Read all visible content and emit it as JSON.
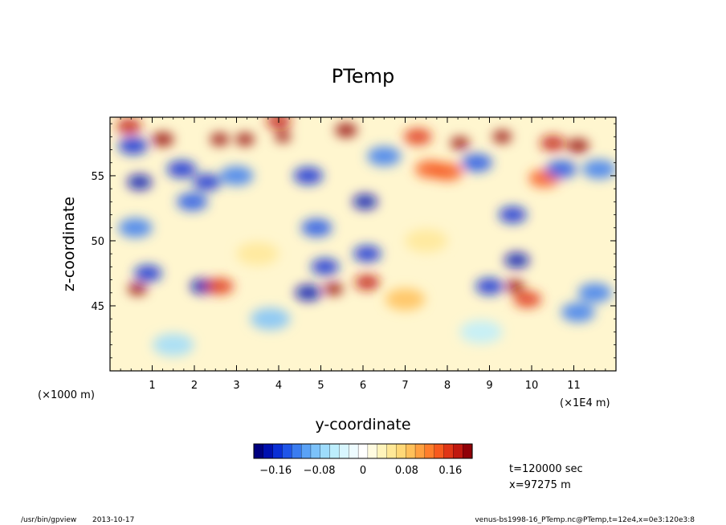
{
  "app": {
    "program": "/usr/bin/gpview",
    "date": "2013-10-17",
    "source": "venus-bs1998-16_PTemp.nc@PTemp,t=12e4,x=0e3:120e3:8"
  },
  "chart_data": {
    "type": "heatmap",
    "title": "PTemp",
    "xlabel": "y-coordinate",
    "ylabel": "z-coordinate",
    "x_unit_label": "(×1E4 m)",
    "y_unit_label": "(×1000 m)",
    "xlim": [
      0,
      12
    ],
    "ylim": [
      40,
      59.5
    ],
    "x_ticks": [
      "1",
      "2",
      "3",
      "4",
      "5",
      "6",
      "7",
      "8",
      "9",
      "10",
      "11"
    ],
    "y_ticks": [
      "45",
      "50",
      "55"
    ],
    "x_tick_values": [
      1,
      2,
      3,
      4,
      5,
      6,
      7,
      8,
      9,
      10,
      11
    ],
    "y_tick_values": [
      45,
      50,
      55
    ],
    "colorbar": {
      "range": [
        -0.2,
        0.2
      ],
      "tick_labels": [
        "−0.16",
        "−0.08",
        "0",
        "0.08",
        "0.16"
      ],
      "tick_values": [
        -0.16,
        -0.08,
        0,
        0.08,
        0.16
      ],
      "colors": [
        "#00007f",
        "#0010b0",
        "#0a2fd6",
        "#1f55e8",
        "#3a7cf0",
        "#5aa2f6",
        "#7cc2fa",
        "#9edcfc",
        "#bdeefd",
        "#d8f6fe",
        "#eefcff",
        "#ffffff",
        "#fffbe0",
        "#fff4bb",
        "#ffe897",
        "#ffd877",
        "#ffc05a",
        "#ffa040",
        "#ff7e2c",
        "#f75a1e",
        "#e03516",
        "#c0180f",
        "#900007"
      ],
      "undef_color": "#ffffff"
    },
    "field_features": [
      {
        "y": 0.55,
        "z": 57.3,
        "value": -0.15,
        "note": "negative anomaly"
      },
      {
        "y": 0.7,
        "z": 54.5,
        "value": -0.18,
        "note": "negative anomaly"
      },
      {
        "y": 0.6,
        "z": 51.0,
        "value": -0.12,
        "note": "negative anomaly"
      },
      {
        "y": 0.9,
        "z": 47.5,
        "value": -0.16,
        "note": "negative anomaly"
      },
      {
        "y": 0.65,
        "z": 46.3,
        "value": 0.22,
        "note": "warm blob"
      },
      {
        "y": 0.45,
        "z": 58.8,
        "value": 0.18,
        "note": "warm cap"
      },
      {
        "y": 1.25,
        "z": 57.8,
        "value": 0.2,
        "note": "warm cap"
      },
      {
        "y": 1.7,
        "z": 55.5,
        "value": -0.15,
        "note": "negative anomaly"
      },
      {
        "y": 1.95,
        "z": 53.0,
        "value": -0.14,
        "note": "negative anomaly"
      },
      {
        "y": 2.3,
        "z": 54.5,
        "value": -0.16,
        "note": "negative anomaly"
      },
      {
        "y": 2.2,
        "z": 46.5,
        "value": -0.18,
        "note": "negative anomaly"
      },
      {
        "y": 2.6,
        "z": 46.5,
        "value": 0.16,
        "note": "warm blob"
      },
      {
        "y": 2.6,
        "z": 57.8,
        "value": 0.22,
        "note": "warm cap"
      },
      {
        "y": 3.2,
        "z": 57.8,
        "value": 0.22,
        "note": "warm cap"
      },
      {
        "y": 3.0,
        "z": 55.0,
        "value": -0.12,
        "note": "negative anomaly"
      },
      {
        "y": 4.1,
        "z": 58.0,
        "value": 0.24,
        "note": "warm cap"
      },
      {
        "y": 4.0,
        "z": 59.2,
        "value": 0.18,
        "note": "warm cap"
      },
      {
        "y": 4.7,
        "z": 55.0,
        "value": -0.15,
        "note": "negative anomaly"
      },
      {
        "y": 4.9,
        "z": 51.0,
        "value": -0.14,
        "note": "negative anomaly"
      },
      {
        "y": 5.1,
        "z": 48.0,
        "value": -0.16,
        "note": "negative anomaly"
      },
      {
        "y": 5.3,
        "z": 46.3,
        "value": 0.22,
        "note": "warm blob"
      },
      {
        "y": 4.7,
        "z": 46.0,
        "value": -0.17,
        "note": "negative anomaly"
      },
      {
        "y": 5.6,
        "z": 58.5,
        "value": 0.2,
        "note": "warm cap"
      },
      {
        "y": 6.05,
        "z": 53.0,
        "value": -0.18,
        "note": "negative anomaly"
      },
      {
        "y": 6.1,
        "z": 49.0,
        "value": -0.16,
        "note": "negative anomaly"
      },
      {
        "y": 6.1,
        "z": 46.8,
        "value": 0.18,
        "note": "warm blob"
      },
      {
        "y": 6.5,
        "z": 56.5,
        "value": -0.12,
        "note": "negative anomaly"
      },
      {
        "y": 7.3,
        "z": 58.0,
        "value": 0.16,
        "note": "warm cap"
      },
      {
        "y": 7.6,
        "z": 55.5,
        "value": 0.14,
        "note": "warm band"
      },
      {
        "y": 8.3,
        "z": 57.5,
        "value": 0.22,
        "note": "warm cap"
      },
      {
        "y": 8.0,
        "z": 55.3,
        "value": 0.14,
        "note": "warm band"
      },
      {
        "y": 8.7,
        "z": 56.0,
        "value": -0.14,
        "note": "negative anomaly"
      },
      {
        "y": 9.3,
        "z": 58.0,
        "value": 0.22,
        "note": "warm cap"
      },
      {
        "y": 9.55,
        "z": 52.0,
        "value": -0.16,
        "note": "negative anomaly"
      },
      {
        "y": 9.65,
        "z": 48.5,
        "value": -0.18,
        "note": "negative anomaly"
      },
      {
        "y": 9.6,
        "z": 46.5,
        "value": 0.22,
        "note": "warm blob"
      },
      {
        "y": 9.0,
        "z": 46.5,
        "value": -0.16,
        "note": "negative anomaly"
      },
      {
        "y": 9.9,
        "z": 45.5,
        "value": 0.16,
        "note": "warm blob"
      },
      {
        "y": 10.5,
        "z": 57.5,
        "value": 0.18,
        "note": "warm cap"
      },
      {
        "y": 10.3,
        "z": 54.8,
        "value": 0.14,
        "note": "warm band"
      },
      {
        "y": 11.1,
        "z": 57.3,
        "value": 0.2,
        "note": "warm cap"
      },
      {
        "y": 10.7,
        "z": 55.5,
        "value": -0.14,
        "note": "negative anomaly"
      },
      {
        "y": 11.6,
        "z": 55.5,
        "value": -0.12,
        "note": "negative anomaly"
      },
      {
        "y": 11.1,
        "z": 44.5,
        "value": -0.12,
        "note": "negative anomaly"
      },
      {
        "y": 11.5,
        "z": 46.0,
        "value": -0.12,
        "note": "negative anomaly"
      },
      {
        "y": 3.8,
        "z": 44.0,
        "value": -0.08,
        "note": "negative anomaly"
      },
      {
        "y": 7.0,
        "z": 45.5,
        "value": 0.08,
        "note": "warm band"
      },
      {
        "y": 3.5,
        "z": 49.0,
        "value": 0.06,
        "note": "warm band"
      },
      {
        "y": 7.5,
        "z": 50.0,
        "value": 0.06,
        "note": "warm band"
      },
      {
        "y": 1.5,
        "z": 42.0,
        "value": -0.07,
        "note": "negative anomaly"
      },
      {
        "y": 8.8,
        "z": 43.0,
        "value": -0.06,
        "note": "negative anomaly"
      }
    ]
  },
  "info": {
    "time": "t=120000 sec",
    "position": "x=97275 m"
  }
}
